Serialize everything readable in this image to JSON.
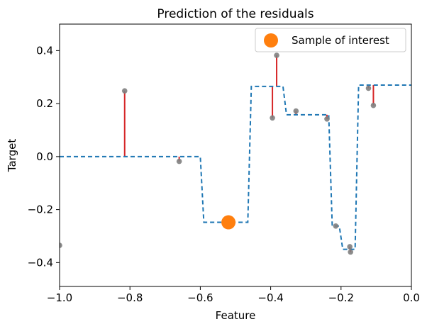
{
  "chart_data": {
    "type": "scatter",
    "title": "Prediction of the residuals",
    "xlabel": "Feature",
    "ylabel": "Target",
    "xlim": [
      -1.0,
      0.0
    ],
    "ylim": [
      -0.49,
      0.5
    ],
    "x_ticks": [
      -1.0,
      -0.8,
      -0.6,
      -0.4,
      -0.2,
      0.0
    ],
    "x_tick_labels": [
      "−1.0",
      "−0.8",
      "−0.6",
      "−0.4",
      "−0.2",
      "0.0"
    ],
    "y_ticks": [
      -0.4,
      -0.2,
      0.0,
      0.2,
      0.4
    ],
    "y_tick_labels": [
      "−0.4",
      "−0.2",
      "0.0",
      "0.2",
      "0.4"
    ],
    "grid": false,
    "legend": {
      "position": "top-right",
      "entries": [
        {
          "label": "Sample of interest",
          "color": "#ff7f0e"
        }
      ]
    },
    "colors": {
      "step_line": "#1f77b4",
      "points": "#808080",
      "residuals": "#d62728",
      "highlight": "#ff7f0e"
    },
    "points": [
      {
        "x": -1.0,
        "y": -0.335,
        "pred": -0.335
      },
      {
        "x": -0.815,
        "y": 0.248,
        "pred": 0.0
      },
      {
        "x": -0.66,
        "y": -0.018,
        "pred": 0.0
      },
      {
        "x": -0.395,
        "y": 0.146,
        "pred": 0.265
      },
      {
        "x": -0.383,
        "y": 0.382,
        "pred": 0.265
      },
      {
        "x": -0.328,
        "y": 0.172,
        "pred": 0.158
      },
      {
        "x": -0.24,
        "y": 0.142,
        "pred": 0.158
      },
      {
        "x": -0.215,
        "y": -0.262,
        "pred": -0.262
      },
      {
        "x": -0.175,
        "y": -0.34,
        "pred": -0.35
      },
      {
        "x": -0.173,
        "y": -0.36,
        "pred": -0.35
      },
      {
        "x": -0.122,
        "y": 0.258,
        "pred": 0.27
      },
      {
        "x": -0.108,
        "y": 0.193,
        "pred": 0.27
      }
    ],
    "prediction_line": [
      [
        -1.0,
        0.0
      ],
      [
        -0.6,
        0.0
      ],
      [
        -0.59,
        -0.248
      ],
      [
        -0.465,
        -0.248
      ],
      [
        -0.455,
        0.265
      ],
      [
        -0.365,
        0.265
      ],
      [
        -0.355,
        0.158
      ],
      [
        -0.235,
        0.158
      ],
      [
        -0.225,
        -0.262
      ],
      [
        -0.205,
        -0.262
      ],
      [
        -0.195,
        -0.35
      ],
      [
        -0.16,
        -0.35
      ],
      [
        -0.15,
        0.27
      ],
      [
        0.0,
        0.27
      ]
    ],
    "sample_of_interest": {
      "x": -0.52,
      "y": -0.248
    }
  }
}
